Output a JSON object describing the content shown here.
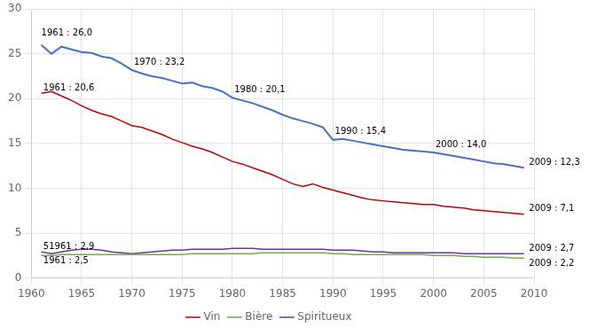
{
  "chart_data": {
    "type": "line",
    "x": [
      1961,
      1962,
      1963,
      1964,
      1965,
      1966,
      1967,
      1968,
      1969,
      1970,
      1971,
      1972,
      1973,
      1974,
      1975,
      1976,
      1977,
      1978,
      1979,
      1980,
      1981,
      1982,
      1983,
      1984,
      1985,
      1986,
      1987,
      1988,
      1989,
      1990,
      1991,
      1992,
      1993,
      1994,
      1995,
      1996,
      1997,
      1998,
      1999,
      2000,
      2001,
      2002,
      2003,
      2004,
      2005,
      2006,
      2007,
      2008,
      2009
    ],
    "series": [
      {
        "color": "#4472C4",
        "values": [
          26.0,
          25.0,
          25.8,
          25.5,
          25.2,
          25.1,
          24.7,
          24.5,
          23.9,
          23.2,
          22.8,
          22.5,
          22.3,
          22.0,
          21.7,
          21.8,
          21.4,
          21.2,
          20.8,
          20.1,
          19.8,
          19.5,
          19.1,
          18.7,
          18.2,
          17.8,
          17.5,
          17.2,
          16.8,
          15.4,
          15.5,
          15.3,
          15.1,
          14.9,
          14.7,
          14.5,
          14.3,
          14.2,
          14.1,
          14.0,
          13.8,
          13.6,
          13.4,
          13.2,
          13.0,
          12.8,
          12.7,
          12.5,
          12.3
        ]
      },
      {
        "name": "Vin",
        "color": "#C00000",
        "values": [
          20.6,
          20.8,
          20.3,
          19.8,
          19.2,
          18.7,
          18.3,
          18.0,
          17.5,
          17.0,
          16.8,
          16.4,
          16.0,
          15.5,
          15.1,
          14.7,
          14.4,
          14.0,
          13.5,
          13.0,
          12.7,
          12.3,
          11.9,
          11.5,
          11.0,
          10.5,
          10.2,
          10.5,
          10.1,
          9.8,
          9.5,
          9.2,
          8.9,
          8.7,
          8.6,
          8.5,
          8.4,
          8.3,
          8.2,
          8.2,
          8.0,
          7.9,
          7.8,
          7.6,
          7.5,
          7.4,
          7.3,
          7.2,
          7.1
        ]
      },
      {
        "name": "Bière",
        "color": "#70AD47",
        "values": [
          2.5,
          2.5,
          2.6,
          2.6,
          2.6,
          2.6,
          2.6,
          2.6,
          2.6,
          2.6,
          2.6,
          2.6,
          2.6,
          2.6,
          2.6,
          2.7,
          2.7,
          2.7,
          2.7,
          2.7,
          2.7,
          2.7,
          2.8,
          2.8,
          2.8,
          2.8,
          2.8,
          2.8,
          2.8,
          2.7,
          2.7,
          2.6,
          2.6,
          2.6,
          2.6,
          2.6,
          2.6,
          2.6,
          2.6,
          2.5,
          2.5,
          2.5,
          2.4,
          2.4,
          2.3,
          2.3,
          2.3,
          2.2,
          2.2
        ]
      },
      {
        "name": "Spiritueux",
        "color": "#7030A0",
        "values": [
          2.9,
          2.7,
          2.9,
          3.1,
          3.2,
          3.2,
          3.1,
          2.9,
          2.8,
          2.7,
          2.8,
          2.9,
          3.0,
          3.1,
          3.1,
          3.2,
          3.2,
          3.2,
          3.2,
          3.3,
          3.3,
          3.3,
          3.2,
          3.2,
          3.2,
          3.2,
          3.2,
          3.2,
          3.2,
          3.1,
          3.1,
          3.1,
          3.0,
          2.9,
          2.9,
          2.8,
          2.8,
          2.8,
          2.8,
          2.8,
          2.8,
          2.8,
          2.7,
          2.7,
          2.7,
          2.7,
          2.7,
          2.7,
          2.7
        ]
      }
    ],
    "annotations": [
      {
        "text": "1961 : 26,0",
        "x": 1961.0,
        "y": 26.7
      },
      {
        "text": "1970 : 23,2",
        "x": 1970.2,
        "y": 23.5
      },
      {
        "text": "1980 : 20,1",
        "x": 1980.2,
        "y": 20.4
      },
      {
        "text": "1990 : 15,4",
        "x": 1990.2,
        "y": 15.7
      },
      {
        "text": "2000 : 14,0",
        "x": 2000.2,
        "y": 14.3
      },
      {
        "text": "2009 : 12,3",
        "x": 2009.5,
        "y": 12.3
      },
      {
        "text": "1961 : 20,6",
        "x": 1961.2,
        "y": 20.6
      },
      {
        "text": "2009 : 7,1",
        "x": 2009.5,
        "y": 7.1
      },
      {
        "text": "51961 : 2,9",
        "x": 1961.2,
        "y": 2.9
      },
      {
        "text": "2009 : 2,7",
        "x": 2009.5,
        "y": 2.7
      },
      {
        "text": "1961 : 2,5",
        "x": 1961.2,
        "y": 2.5
      },
      {
        "text": "2009 : 2,2",
        "x": 2009.5,
        "y": 2.2
      }
    ],
    "xlim": [
      1960,
      2010
    ],
    "ylim": [
      0,
      30
    ],
    "xticks": [
      1960,
      1965,
      1970,
      1975,
      1980,
      1985,
      1990,
      1995,
      2000,
      2005,
      2010
    ],
    "yticks": [
      0,
      5,
      10,
      15,
      20,
      25,
      30
    ],
    "grid": true,
    "legend": "bottom"
  }
}
